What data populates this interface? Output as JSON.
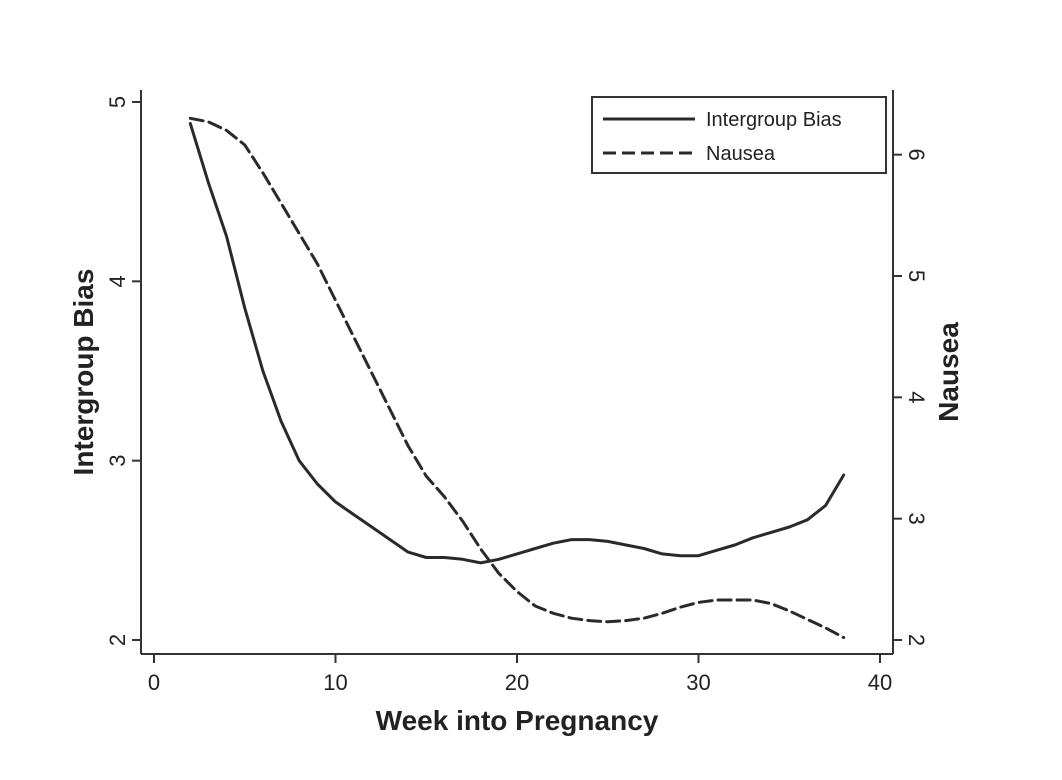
{
  "chart_data": {
    "type": "line",
    "title": "",
    "xlabel": "Week into Pregnancy",
    "ylabel_left": "Intergroup Bias",
    "ylabel_right": "Nausea",
    "xlim": [
      0,
      40
    ],
    "ylim_left": [
      2,
      5
    ],
    "ylim_right": [
      2,
      6.5
    ],
    "x_ticks": [
      "0",
      "10",
      "20",
      "30",
      "40"
    ],
    "y_left_ticks": [
      "2",
      "3",
      "4",
      "5"
    ],
    "y_right_ticks": [
      "2",
      "3",
      "4",
      "5",
      "6"
    ],
    "grid": false,
    "legend_position": "top-right",
    "series": [
      {
        "name": "Intergroup Bias",
        "axis": "left",
        "style": "solid",
        "x": [
          2,
          3,
          4,
          5,
          6,
          7,
          8,
          9,
          10,
          11,
          12,
          13,
          14,
          15,
          16,
          17,
          18,
          19,
          20,
          21,
          22,
          23,
          24,
          25,
          26,
          27,
          28,
          29,
          30,
          31,
          32,
          33,
          34,
          35,
          36,
          37,
          38
        ],
        "values": [
          4.88,
          4.55,
          4.25,
          3.85,
          3.5,
          3.22,
          3.0,
          2.87,
          2.77,
          2.7,
          2.63,
          2.56,
          2.49,
          2.46,
          2.46,
          2.45,
          2.43,
          2.45,
          2.48,
          2.51,
          2.54,
          2.56,
          2.56,
          2.55,
          2.53,
          2.51,
          2.48,
          2.47,
          2.47,
          2.5,
          2.53,
          2.57,
          2.6,
          2.63,
          2.67,
          2.75,
          2.92
        ]
      },
      {
        "name": "Nausea",
        "axis": "right",
        "style": "dashed",
        "x": [
          2,
          3,
          4,
          5,
          6,
          7,
          8,
          9,
          10,
          11,
          12,
          13,
          14,
          15,
          16,
          17,
          18,
          19,
          20,
          21,
          22,
          23,
          24,
          25,
          26,
          27,
          28,
          29,
          30,
          31,
          32,
          33,
          34,
          35,
          36,
          37,
          38
        ],
        "values": [
          6.3,
          6.27,
          6.2,
          6.08,
          5.85,
          5.6,
          5.35,
          5.1,
          4.8,
          4.5,
          4.2,
          3.9,
          3.6,
          3.35,
          3.18,
          2.98,
          2.75,
          2.55,
          2.4,
          2.28,
          2.22,
          2.18,
          2.16,
          2.15,
          2.16,
          2.18,
          2.22,
          2.27,
          2.31,
          2.33,
          2.33,
          2.33,
          2.3,
          2.24,
          2.17,
          2.1,
          2.02
        ]
      }
    ]
  }
}
